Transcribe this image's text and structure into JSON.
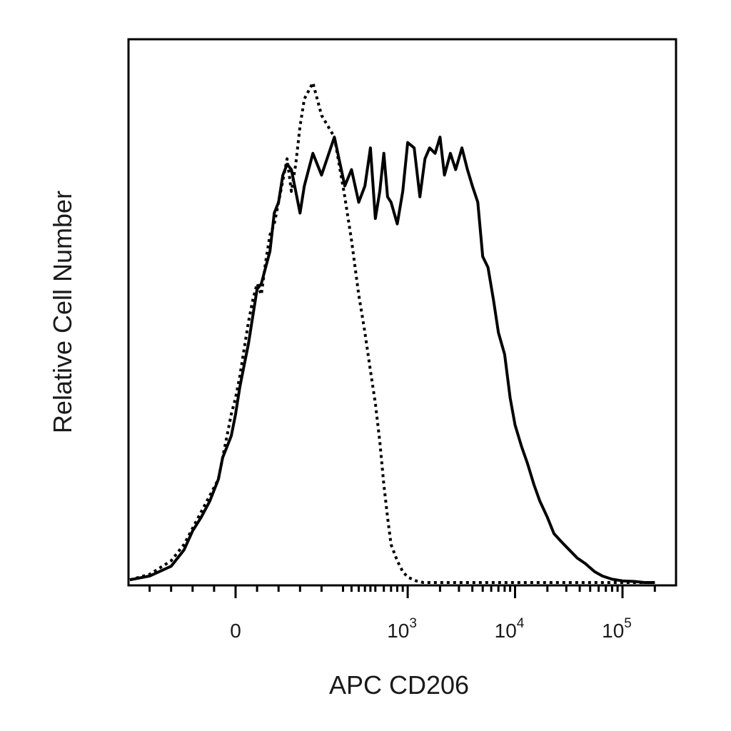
{
  "chart_data": {
    "type": "line",
    "title": "",
    "xlabel": "APC CD206",
    "ylabel": "Relative Cell Number",
    "x_scale": "biexponential",
    "xlim": [
      -250,
      200000
    ],
    "ylim": [
      0,
      1
    ],
    "grid": false,
    "legend": "none",
    "x_ticks": [
      {
        "value": 0,
        "base": "0",
        "exp": ""
      },
      {
        "value": 1000,
        "base": "10",
        "exp": "3"
      },
      {
        "value": 10000,
        "base": "10",
        "exp": "4"
      },
      {
        "value": 100000,
        "base": "10",
        "exp": "5"
      }
    ],
    "minor_ticks": [
      -200,
      -150,
      -100,
      -50,
      50,
      100,
      150,
      200,
      250,
      300,
      350,
      400,
      450,
      500,
      600,
      700,
      800,
      900,
      2000,
      3000,
      4000,
      5000,
      6000,
      7000,
      8000,
      9000,
      20000,
      30000,
      40000,
      50000,
      60000,
      70000,
      80000,
      90000,
      200000
    ],
    "series": [
      {
        "style": "solid",
        "color": "#000000",
        "x": [
          -250,
          -200,
          -150,
          -120,
          -100,
          -80,
          -60,
          -40,
          -30,
          -20,
          -10,
          0,
          10,
          20,
          30,
          40,
          50,
          60,
          70,
          80,
          90,
          100,
          110,
          120,
          130,
          140,
          150,
          160,
          180,
          200,
          230,
          260,
          300,
          350,
          400,
          450,
          500,
          550,
          600,
          650,
          700,
          800,
          900,
          1000,
          1150,
          1300,
          1450,
          1600,
          1800,
          2000,
          2200,
          2500,
          2800,
          3200,
          3600,
          4000,
          4500,
          5000,
          5600,
          6300,
          7000,
          8000,
          9000,
          10000,
          11500,
          13000,
          15000,
          17000,
          20000,
          23000,
          27000,
          32000,
          38000,
          45000,
          55000,
          65000,
          80000,
          100000,
          130000,
          160000,
          200000
        ],
        "y": [
          0.005,
          0.012,
          0.03,
          0.06,
          0.095,
          0.12,
          0.15,
          0.19,
          0.23,
          0.25,
          0.27,
          0.31,
          0.36,
          0.4,
          0.44,
          0.49,
          0.54,
          0.55,
          0.58,
          0.61,
          0.68,
          0.7,
          0.75,
          0.77,
          0.76,
          0.72,
          0.68,
          0.73,
          0.79,
          0.75,
          0.82,
          0.73,
          0.76,
          0.7,
          0.73,
          0.8,
          0.67,
          0.72,
          0.79,
          0.71,
          0.7,
          0.66,
          0.72,
          0.81,
          0.8,
          0.71,
          0.78,
          0.8,
          0.79,
          0.82,
          0.75,
          0.79,
          0.76,
          0.8,
          0.76,
          0.73,
          0.7,
          0.6,
          0.58,
          0.52,
          0.46,
          0.42,
          0.34,
          0.29,
          0.25,
          0.22,
          0.18,
          0.15,
          0.12,
          0.09,
          0.075,
          0.06,
          0.045,
          0.035,
          0.02,
          0.012,
          0.006,
          0.003,
          0.002,
          0.0,
          0.0
        ]
      },
      {
        "style": "dotted",
        "color": "#000000",
        "x": [
          -250,
          -200,
          -150,
          -120,
          -100,
          -80,
          -60,
          -40,
          -30,
          -20,
          -10,
          0,
          10,
          20,
          30,
          40,
          50,
          60,
          70,
          80,
          90,
          100,
          110,
          120,
          130,
          140,
          150,
          160,
          180,
          200,
          230,
          260,
          300,
          350,
          400,
          450,
          500,
          550,
          600,
          650,
          700,
          800,
          900,
          1000,
          1200,
          1400,
          1800,
          2500,
          4000,
          8000,
          20000,
          60000,
          200000
        ],
        "y": [
          0.005,
          0.015,
          0.04,
          0.07,
          0.1,
          0.13,
          0.16,
          0.19,
          0.23,
          0.27,
          0.31,
          0.34,
          0.38,
          0.43,
          0.48,
          0.52,
          0.55,
          0.53,
          0.59,
          0.64,
          0.66,
          0.7,
          0.74,
          0.78,
          0.72,
          0.77,
          0.84,
          0.89,
          0.92,
          0.86,
          0.82,
          0.71,
          0.63,
          0.53,
          0.46,
          0.39,
          0.33,
          0.26,
          0.18,
          0.12,
          0.07,
          0.04,
          0.02,
          0.01,
          0.003,
          0.0,
          0.0,
          0.0,
          0.0,
          0.0,
          0.0,
          0.0,
          0.0
        ]
      }
    ]
  }
}
